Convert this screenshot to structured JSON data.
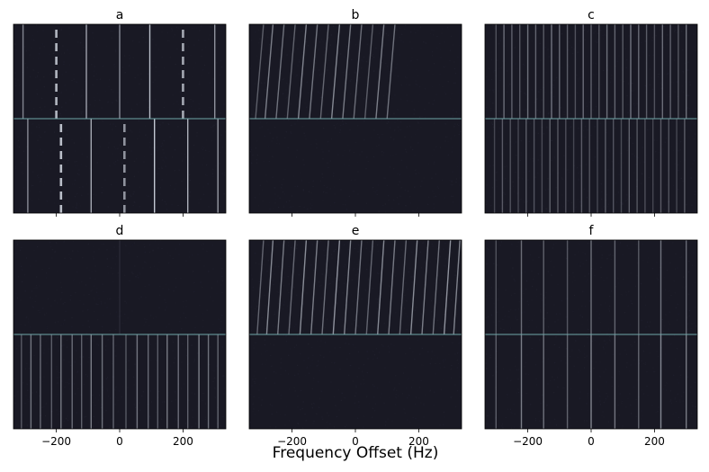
{
  "figure": {
    "xlabel": "Frequency Offset (Hz)",
    "colors": {
      "background": "#191924",
      "noise": "#262636",
      "line": "#e6ecf6",
      "divider": "#6fa6a8"
    }
  },
  "chart_data": [
    {
      "type": "heatmap",
      "title": "a",
      "xlim": [
        -335,
        335
      ],
      "xticks": [
        -200,
        0,
        200
      ],
      "show_tick_labels": false,
      "top": {
        "lines": [
          -305,
          -200,
          -105,
          0,
          95,
          200,
          300
        ],
        "dashed": [
          -200,
          200
        ],
        "intensity": 0.85,
        "drift": 0
      },
      "bottom": {
        "lines": [
          -290,
          -185,
          -90,
          15,
          110,
          215,
          310
        ],
        "dashed": [
          -185,
          15
        ],
        "intensity": 0.9,
        "drift": 0
      }
    },
    {
      "type": "heatmap",
      "title": "b",
      "xlim": [
        -335,
        335
      ],
      "xticks": [
        -200,
        0,
        200
      ],
      "show_tick_labels": false,
      "top": {
        "lines": [
          -315,
          -285,
          -250,
          -215,
          -180,
          -145,
          -110,
          -75,
          -40,
          -5,
          30,
          65,
          100
        ],
        "dashed": [],
        "intensity": 0.55,
        "drift": 25
      },
      "bottom": {
        "lines": [],
        "dashed": [],
        "intensity": 0.0,
        "drift": 0
      }
    },
    {
      "type": "heatmap",
      "title": "c",
      "xlim": [
        -335,
        335
      ],
      "xticks": [
        -200,
        0,
        200
      ],
      "show_tick_labels": false,
      "top": {
        "lines": [
          -300,
          -275,
          -250,
          -225,
          -200,
          -175,
          -150,
          -125,
          -100,
          -75,
          -50,
          -25,
          0,
          25,
          50,
          75,
          100,
          125,
          150,
          175,
          200,
          225,
          250,
          275,
          300
        ],
        "dashed": [],
        "intensity": 0.45,
        "drift": 0
      },
      "bottom": {
        "lines": [
          -305,
          -280,
          -255,
          -230,
          -205,
          -180,
          -155,
          -130,
          -105,
          -80,
          -55,
          -30,
          -5,
          20,
          45,
          70,
          95,
          120,
          145,
          170,
          195,
          220,
          245,
          270,
          295
        ],
        "dashed": [],
        "intensity": 0.35,
        "drift": 0
      }
    },
    {
      "type": "heatmap",
      "title": "d",
      "xlim": [
        -335,
        335
      ],
      "xticks": [
        -200,
        0,
        200
      ],
      "show_tick_labels": false,
      "top": {
        "lines": [
          0
        ],
        "dashed": [],
        "intensity": 0.12,
        "drift": 0
      },
      "bottom": {
        "lines": [
          -310,
          -280,
          -250,
          -215,
          -185,
          -150,
          -120,
          -90,
          -55,
          -20,
          20,
          55,
          90,
          120,
          150,
          185,
          215,
          250,
          280,
          310
        ],
        "dashed": [],
        "intensity": 0.5,
        "drift": 0
      }
    },
    {
      "type": "heatmap",
      "title": "e",
      "xlim": [
        -335,
        335
      ],
      "xticks": [
        -200,
        0,
        200
      ],
      "show_tick_labels": true,
      "top": {
        "lines": [
          -310,
          -280,
          -245,
          -210,
          -175,
          -140,
          -105,
          -70,
          -35,
          0,
          35,
          70,
          105,
          140,
          175,
          210,
          245,
          280,
          310
        ],
        "dashed": [],
        "intensity": 0.6,
        "drift": 20
      },
      "bottom": {
        "lines": [],
        "dashed": [],
        "intensity": 0.0,
        "drift": 0
      }
    },
    {
      "type": "heatmap",
      "title": "f",
      "xlim": [
        -335,
        335
      ],
      "xticks": [
        -200,
        0,
        200
      ],
      "show_tick_labels": true,
      "top": {
        "lines": [
          -300,
          -220,
          -150,
          -75,
          0,
          75,
          150,
          220,
          300
        ],
        "dashed": [],
        "intensity": 0.45,
        "drift": 0
      },
      "bottom": {
        "lines": [
          -300,
          -220,
          -150,
          -75,
          0,
          75,
          150,
          220,
          300
        ],
        "dashed": [],
        "intensity": 0.55,
        "drift": 0
      }
    }
  ]
}
